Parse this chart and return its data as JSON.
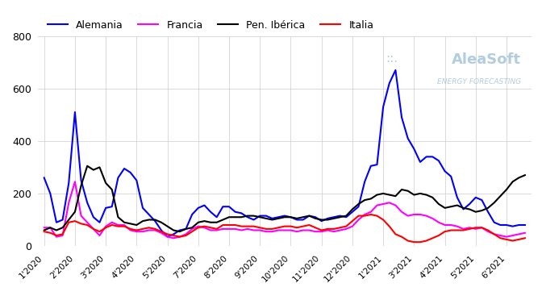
{
  "series": {
    "Alemania": {
      "color": "#0000FF",
      "linewidth": 1.5
    },
    "Francia": {
      "color": "#FF00FF",
      "linewidth": 1.5
    },
    "Pen. Ibérica": {
      "color": "#000000",
      "linewidth": 1.5
    },
    "Italia": {
      "color": "#FF0000",
      "linewidth": 1.5
    }
  },
  "ylim": [
    0,
    800
  ],
  "yticks": [
    0,
    200,
    400,
    600,
    800
  ],
  "background_color": "#ffffff",
  "grid_color": "#cccccc",
  "watermark_text1": "AleaSoft",
  "watermark_text2": "ENERGY FORECASTING",
  "legend_loc": "upper center",
  "alemania": [
    260,
    200,
    90,
    100,
    240,
    510,
    250,
    165,
    110,
    90,
    145,
    150,
    260,
    295,
    280,
    250,
    145,
    120,
    95,
    60,
    35,
    45,
    60,
    65,
    120,
    145,
    155,
    130,
    110,
    150,
    150,
    130,
    125,
    110,
    100,
    115,
    115,
    105,
    110,
    115,
    110,
    100,
    100,
    115,
    110,
    95,
    105,
    110,
    115,
    110,
    130,
    150,
    245,
    305,
    310,
    530,
    620,
    670,
    490,
    410,
    370,
    320,
    340,
    340,
    325,
    285,
    265,
    185,
    140,
    160,
    185,
    175,
    130,
    90,
    80,
    80,
    75,
    80,
    80
  ],
  "francia": [
    70,
    70,
    35,
    40,
    165,
    245,
    115,
    90,
    65,
    40,
    75,
    90,
    80,
    80,
    60,
    55,
    55,
    60,
    60,
    50,
    35,
    30,
    35,
    45,
    65,
    75,
    70,
    60,
    60,
    65,
    65,
    65,
    60,
    65,
    60,
    60,
    55,
    55,
    60,
    60,
    60,
    55,
    60,
    60,
    55,
    55,
    60,
    55,
    60,
    65,
    75,
    100,
    120,
    130,
    155,
    160,
    165,
    155,
    130,
    115,
    120,
    120,
    115,
    105,
    90,
    80,
    80,
    75,
    65,
    70,
    65,
    70,
    55,
    45,
    40,
    35,
    40,
    45,
    50
  ],
  "iberica": [
    60,
    70,
    60,
    70,
    100,
    130,
    230,
    305,
    290,
    300,
    240,
    215,
    110,
    90,
    85,
    80,
    95,
    100,
    100,
    90,
    75,
    60,
    55,
    65,
    70,
    90,
    95,
    90,
    90,
    100,
    110,
    110,
    110,
    115,
    115,
    110,
    105,
    100,
    105,
    110,
    110,
    105,
    110,
    115,
    105,
    100,
    100,
    105,
    110,
    115,
    140,
    160,
    175,
    180,
    195,
    200,
    195,
    190,
    215,
    210,
    195,
    200,
    195,
    185,
    160,
    145,
    150,
    155,
    145,
    140,
    130,
    135,
    145,
    165,
    190,
    215,
    245,
    260,
    270
  ],
  "italia": [
    55,
    50,
    40,
    45,
    90,
    95,
    85,
    80,
    65,
    55,
    70,
    80,
    75,
    75,
    65,
    60,
    65,
    70,
    65,
    55,
    45,
    40,
    35,
    40,
    55,
    70,
    75,
    70,
    65,
    80,
    80,
    80,
    75,
    75,
    75,
    70,
    65,
    65,
    70,
    75,
    75,
    70,
    75,
    80,
    70,
    60,
    65,
    65,
    70,
    75,
    95,
    115,
    115,
    120,
    115,
    100,
    75,
    45,
    35,
    20,
    15,
    15,
    20,
    30,
    40,
    55,
    60,
    60,
    60,
    65,
    70,
    70,
    60,
    45,
    30,
    25,
    20,
    25,
    30
  ],
  "n_points": 79,
  "x_tick_every": 5
}
